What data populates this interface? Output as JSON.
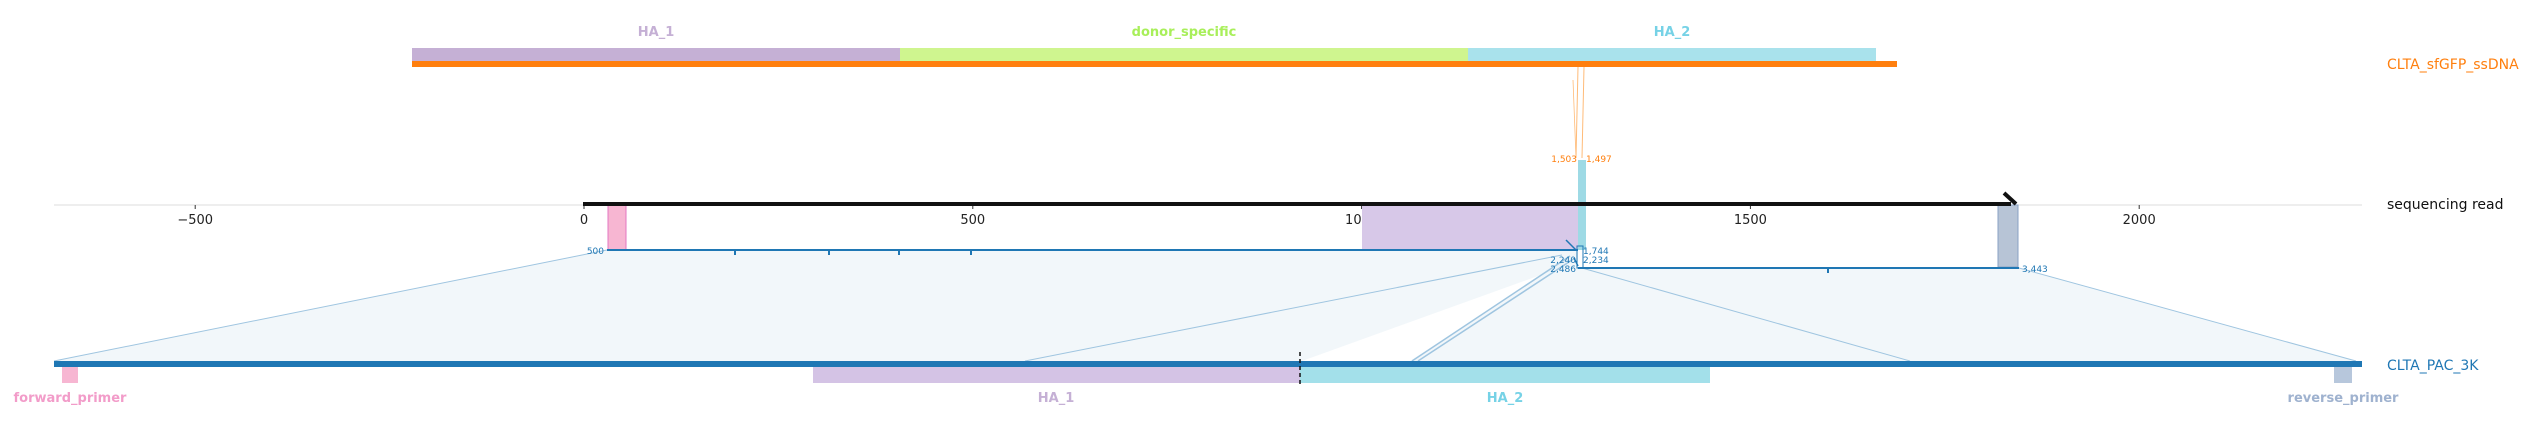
{
  "top_reference": {
    "name": "CLTA_sfGFP_ssDNA",
    "color": "#ff7f0e",
    "features": [
      {
        "label": "HA_1",
        "color": "#c5b0d5"
      },
      {
        "label": "donor_specific",
        "color": "#b7f56c"
      },
      {
        "label": "HA_2",
        "color": "#8fd7e8"
      }
    ]
  },
  "read": {
    "name": "sequencing read",
    "ticks": [
      "−500",
      "0",
      "500",
      "1000",
      "1500",
      "2000"
    ],
    "tick_values": [
      -500,
      0,
      500,
      1000,
      1500,
      2000
    ],
    "read_length": 1830,
    "top_junction": {
      "left": "1,503",
      "right": "1,497"
    },
    "alignment_labels": {
      "start": "500",
      "junction_a": "1,744",
      "junction_b": "2,240",
      "junction_c": "2,234",
      "junction_d": "2,486",
      "end": "3,443"
    },
    "alignment_color": "#1f77b4"
  },
  "bottom_reference": {
    "name": "CLTA_PAC_3K",
    "color": "#1f77b4",
    "features": [
      {
        "label": "forward_primer",
        "color": "#f7b6d2"
      },
      {
        "label": "HA_1",
        "color": "#c5b0d5"
      },
      {
        "label": "HA_2",
        "color": "#9edae5"
      },
      {
        "label": "reverse_primer",
        "color": "#aec7e8"
      }
    ]
  }
}
